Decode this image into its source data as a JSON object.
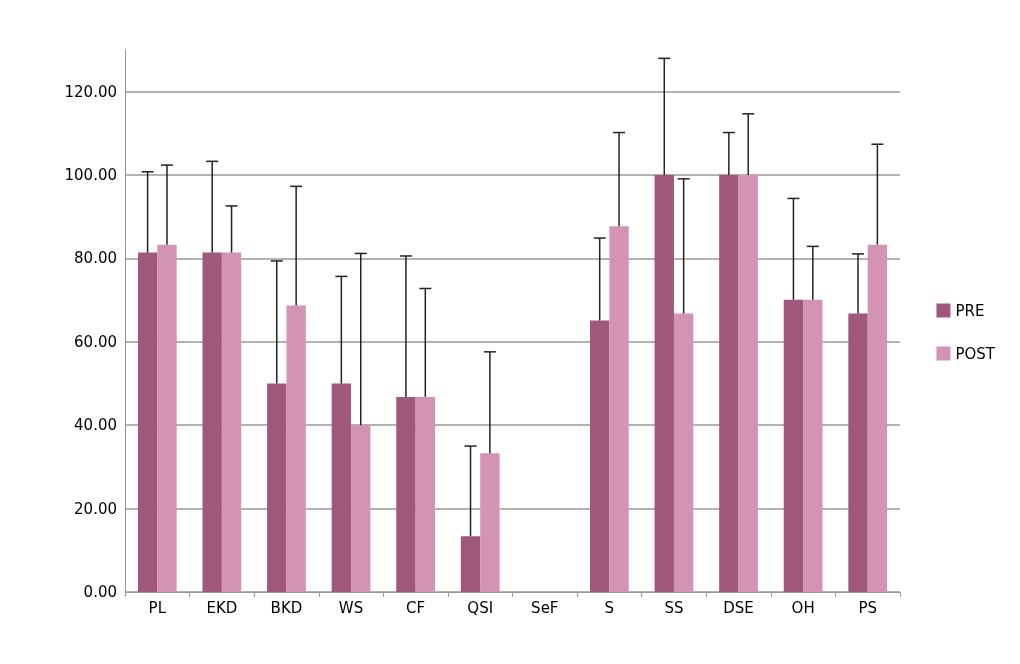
{
  "chart_data": {
    "type": "bar",
    "categories": [
      "PL",
      "EKD",
      "BKD",
      "WS",
      "CF",
      "QSI",
      "SeF",
      "S",
      "SS",
      "DSE",
      "OH",
      "PS"
    ],
    "series": [
      {
        "name": "PRE",
        "color": "#a0577c",
        "values": [
          81.4,
          81.4,
          50.0,
          50.0,
          46.8,
          13.4,
          null,
          65.1,
          100.0,
          100.0,
          70.1,
          66.8
        ],
        "errors": [
          [
            81.4,
            100.8
          ],
          [
            81.4,
            103.3
          ],
          [
            50.0,
            79.4
          ],
          [
            50.0,
            75.7
          ],
          [
            46.8,
            80.6
          ],
          [
            13.4,
            35.0
          ],
          null,
          [
            65.1,
            84.9
          ],
          [
            100.0,
            128.0
          ],
          [
            100.0,
            110.2
          ],
          [
            70.1,
            94.4
          ],
          [
            66.8,
            81.1
          ]
        ]
      },
      {
        "name": "POST",
        "color": "#d393b3",
        "values": [
          83.3,
          81.4,
          68.7,
          40.0,
          46.8,
          33.3,
          null,
          87.7,
          66.8,
          100.0,
          70.1,
          83.3
        ],
        "errors": [
          [
            83.3,
            102.4
          ],
          [
            81.4,
            92.6
          ],
          [
            68.7,
            97.3
          ],
          [
            40.0,
            81.2
          ],
          [
            46.8,
            72.8
          ],
          [
            33.3,
            57.6
          ],
          null,
          [
            87.7,
            110.2
          ],
          [
            66.8,
            99.1
          ],
          [
            100.0,
            114.7
          ],
          [
            70.1,
            82.9
          ],
          [
            83.3,
            107.4
          ]
        ]
      }
    ],
    "ylim": [
      0,
      130
    ],
    "yticks": [
      {
        "value": 0,
        "label": "0.00"
      },
      {
        "value": 20,
        "label": "20.00"
      },
      {
        "value": 40,
        "label": "40.00"
      },
      {
        "value": 60,
        "label": "60.00"
      },
      {
        "value": 80,
        "label": "80.00"
      },
      {
        "value": 100,
        "label": "100.00"
      },
      {
        "value": 120,
        "label": "120.00"
      }
    ],
    "grid": "y",
    "legend": "right"
  }
}
